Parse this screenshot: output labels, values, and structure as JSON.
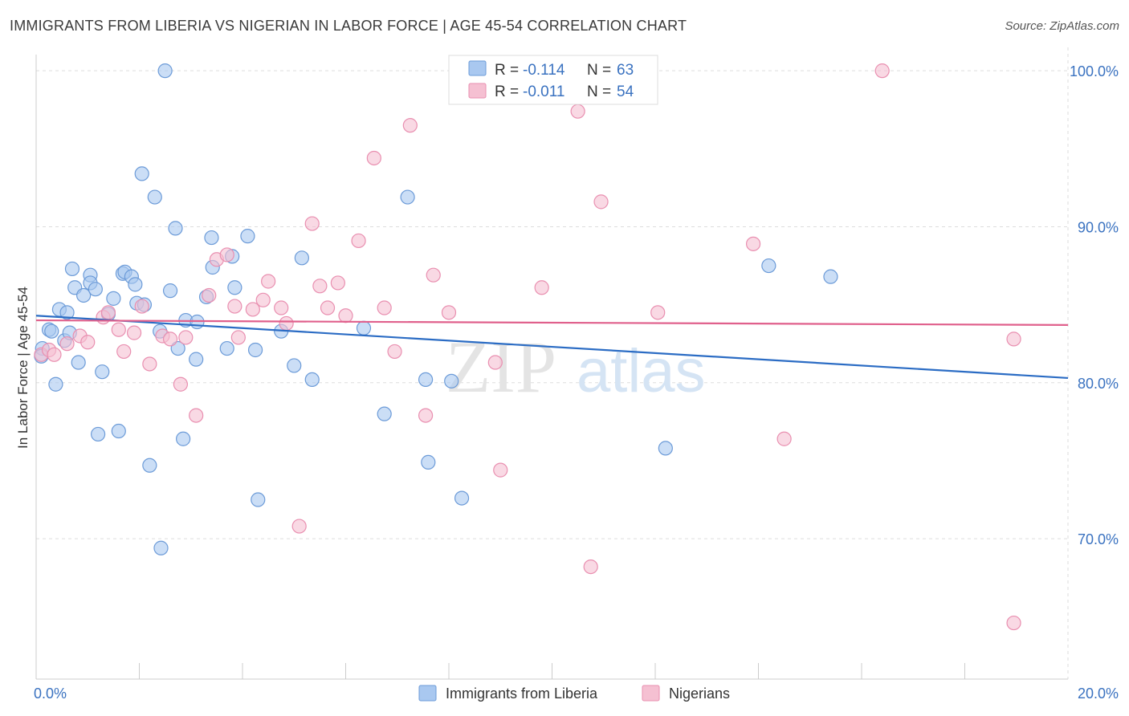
{
  "title": "IMMIGRANTS FROM LIBERIA VS NIGERIAN IN LABOR FORCE | AGE 45-54 CORRELATION CHART",
  "source": "Source: ZipAtlas.com",
  "watermark": {
    "zip": "ZIP",
    "atlas": "atlas"
  },
  "colors": {
    "blue_fill": "#a9c8f0",
    "blue_stroke": "#6c9bd8",
    "blue_line": "#2b6cc4",
    "pink_fill": "#f5c0d2",
    "pink_stroke": "#e98fb0",
    "pink_line": "#e0608c",
    "tick_text": "#3a72c0",
    "grid": "#dddddd"
  },
  "legend_top": [
    {
      "r_label": "R = ",
      "r_value": "-0.114",
      "n_label": "N = ",
      "n_value": "63",
      "color": "blue"
    },
    {
      "r_label": "R = ",
      "r_value": "-0.011",
      "n_label": "N = ",
      "n_value": "54",
      "color": "pink"
    }
  ],
  "chart_data": {
    "type": "scatter",
    "title": "IMMIGRANTS FROM LIBERIA VS NIGERIAN IN LABOR FORCE | AGE 45-54 CORRELATION CHART",
    "xlabel": "",
    "ylabel": "In Labor Force | Age 45-54",
    "xlim": [
      0,
      20
    ],
    "ylim": [
      61,
      101.5
    ],
    "x_tick_labels": [
      {
        "value": 0,
        "label": "0.0%"
      },
      {
        "value": 20,
        "label": "20.0%"
      }
    ],
    "y_tick_labels": [
      {
        "value": 100,
        "label": "100.0%"
      },
      {
        "value": 90,
        "label": "90.0%"
      },
      {
        "value": 80,
        "label": "80.0%"
      },
      {
        "value": 70,
        "label": "70.0%"
      }
    ],
    "x_minor_ticks": [
      2,
      4,
      6,
      8,
      10,
      12,
      14,
      16,
      18
    ],
    "legend_position": "bottom-center",
    "series": [
      {
        "name": "Immigrants from Liberia",
        "color": "blue",
        "trend": {
          "x": [
            0,
            20
          ],
          "y": [
            84.3,
            80.3
          ]
        },
        "points": [
          [
            0.12,
            82.2
          ],
          [
            0.25,
            83.4
          ],
          [
            0.3,
            83.3
          ],
          [
            0.38,
            79.9
          ],
          [
            0.45,
            84.7
          ],
          [
            0.55,
            82.7
          ],
          [
            0.65,
            83.2
          ],
          [
            0.6,
            84.5
          ],
          [
            0.7,
            87.3
          ],
          [
            0.75,
            86.1
          ],
          [
            0.82,
            81.3
          ],
          [
            0.92,
            85.6
          ],
          [
            1.05,
            86.9
          ],
          [
            1.05,
            86.4
          ],
          [
            1.15,
            86.0
          ],
          [
            1.2,
            76.7
          ],
          [
            1.28,
            80.7
          ],
          [
            1.4,
            84.4
          ],
          [
            1.5,
            85.4
          ],
          [
            1.6,
            76.9
          ],
          [
            1.68,
            87.0
          ],
          [
            1.72,
            87.1
          ],
          [
            1.85,
            86.8
          ],
          [
            1.92,
            86.3
          ],
          [
            1.95,
            85.1
          ],
          [
            2.05,
            93.4
          ],
          [
            2.1,
            85.0
          ],
          [
            2.2,
            74.7
          ],
          [
            2.3,
            91.9
          ],
          [
            2.4,
            83.3
          ],
          [
            2.42,
            69.4
          ],
          [
            2.5,
            100.0
          ],
          [
            2.6,
            85.9
          ],
          [
            2.7,
            89.9
          ],
          [
            2.75,
            82.2
          ],
          [
            2.85,
            76.4
          ],
          [
            2.9,
            84.0
          ],
          [
            3.1,
            81.5
          ],
          [
            3.12,
            83.9
          ],
          [
            3.3,
            85.5
          ],
          [
            3.4,
            89.3
          ],
          [
            3.42,
            87.4
          ],
          [
            3.7,
            82.2
          ],
          [
            3.8,
            88.1
          ],
          [
            3.85,
            86.1
          ],
          [
            4.1,
            89.4
          ],
          [
            4.25,
            82.1
          ],
          [
            4.3,
            72.5
          ],
          [
            4.75,
            83.3
          ],
          [
            5.0,
            81.1
          ],
          [
            5.15,
            88.0
          ],
          [
            5.35,
            80.2
          ],
          [
            6.35,
            83.5
          ],
          [
            6.75,
            78.0
          ],
          [
            7.2,
            91.9
          ],
          [
            7.55,
            80.2
          ],
          [
            7.6,
            74.9
          ],
          [
            8.05,
            80.1
          ],
          [
            8.25,
            72.6
          ],
          [
            12.2,
            75.8
          ],
          [
            14.2,
            87.5
          ],
          [
            15.4,
            86.8
          ],
          [
            0.1,
            81.7
          ]
        ]
      },
      {
        "name": "Nigerians",
        "color": "pink",
        "trend": {
          "x": [
            0,
            20
          ],
          "y": [
            84.0,
            83.7
          ]
        },
        "points": [
          [
            0.1,
            81.8
          ],
          [
            0.25,
            82.1
          ],
          [
            0.35,
            81.8
          ],
          [
            0.6,
            82.5
          ],
          [
            0.85,
            83.0
          ],
          [
            1.0,
            82.6
          ],
          [
            1.3,
            84.2
          ],
          [
            1.4,
            84.5
          ],
          [
            1.6,
            83.4
          ],
          [
            1.7,
            82.0
          ],
          [
            1.9,
            83.2
          ],
          [
            2.2,
            81.2
          ],
          [
            2.05,
            84.9
          ],
          [
            2.45,
            83.0
          ],
          [
            2.6,
            82.8
          ],
          [
            2.8,
            79.9
          ],
          [
            2.9,
            82.9
          ],
          [
            3.1,
            77.9
          ],
          [
            3.35,
            85.6
          ],
          [
            3.5,
            87.9
          ],
          [
            3.7,
            88.2
          ],
          [
            3.85,
            84.9
          ],
          [
            3.92,
            82.9
          ],
          [
            4.2,
            84.7
          ],
          [
            4.4,
            85.3
          ],
          [
            4.5,
            86.5
          ],
          [
            4.75,
            84.8
          ],
          [
            4.85,
            83.8
          ],
          [
            5.1,
            70.8
          ],
          [
            5.35,
            90.2
          ],
          [
            5.5,
            86.2
          ],
          [
            5.65,
            84.8
          ],
          [
            5.85,
            86.4
          ],
          [
            6.0,
            84.3
          ],
          [
            6.25,
            89.1
          ],
          [
            6.55,
            94.4
          ],
          [
            6.75,
            84.8
          ],
          [
            6.95,
            82.0
          ],
          [
            7.25,
            96.5
          ],
          [
            7.55,
            77.9
          ],
          [
            7.7,
            86.9
          ],
          [
            8.0,
            84.5
          ],
          [
            8.9,
            81.3
          ],
          [
            9.0,
            74.4
          ],
          [
            9.8,
            86.1
          ],
          [
            10.5,
            97.4
          ],
          [
            10.75,
            68.2
          ],
          [
            10.95,
            91.6
          ],
          [
            12.05,
            84.5
          ],
          [
            13.9,
            88.9
          ],
          [
            14.5,
            76.4
          ],
          [
            16.4,
            100.0
          ],
          [
            18.95,
            82.8
          ],
          [
            18.95,
            64.6
          ]
        ]
      }
    ]
  }
}
